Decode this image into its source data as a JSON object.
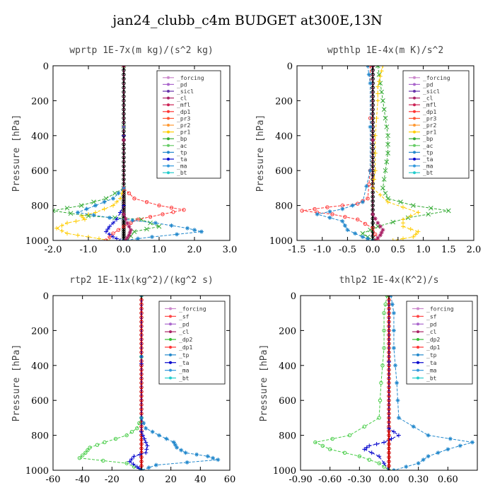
{
  "page": {
    "title": "jan24_clubb_c4m  BUDGET at300E,13N"
  },
  "chart_data": [
    {
      "type": "line",
      "title": "wprtp  1E-7x(m kg)/(s^2 kg)",
      "ylabel": "Pressure [hPa]",
      "xlim": [
        -2.0,
        3.0
      ],
      "ylim": [
        1000,
        0
      ],
      "xticks": [
        "-2.0",
        "-1.0",
        "0.0",
        "1.0",
        "2.0",
        "3.0"
      ],
      "xtick_values": [
        -2,
        -1,
        0,
        1,
        2,
        3
      ],
      "yticks": [
        "0",
        "200",
        "400",
        "600",
        "800",
        "1000"
      ],
      "ytick_values": [
        0,
        200,
        400,
        600,
        800,
        1000
      ],
      "legend": [
        "_forcing",
        "_pd",
        "_sicl",
        "_cl",
        "_mfl",
        "_dp1",
        "_pr3",
        "_pr2",
        "_pr1",
        "_bp",
        "_ac",
        "_tp",
        "_ta",
        "_ma",
        "_bt"
      ],
      "series": [
        {
          "name": "_forcing",
          "color": "#000000",
          "marker": "o",
          "x": [
            0,
            0,
            0,
            0,
            0,
            0,
            0,
            0,
            0,
            0,
            0,
            0,
            0,
            0
          ],
          "y": [
            0,
            100,
            200,
            300,
            400,
            500,
            600,
            700,
            750,
            800,
            850,
            900,
            950,
            1000
          ]
        },
        {
          "name": "_pr1",
          "color": "#ffcc00",
          "marker": "+",
          "x": [
            0,
            0,
            -0.1,
            -0.3,
            -0.8,
            -1.2,
            -1.1,
            -1.6,
            -1.9,
            -1.6,
            -1.0,
            -0.4
          ],
          "y": [
            0,
            700,
            760,
            800,
            840,
            860,
            880,
            900,
            930,
            960,
            980,
            1000
          ]
        },
        {
          "name": "_bp",
          "color": "#33aa33",
          "marker": "x",
          "x": [
            0,
            0,
            -0.5,
            -1.2,
            -2.0,
            -1.0,
            0.5,
            1.0,
            0.3,
            0.1
          ],
          "y": [
            0,
            700,
            760,
            800,
            830,
            860,
            880,
            920,
            950,
            1000
          ]
        },
        {
          "name": "_dp1",
          "color": "#ff3333",
          "marker": "o",
          "x": [
            0,
            0,
            0.3,
            1.0,
            1.7,
            1.1,
            0.4,
            0,
            -0.3,
            -0.5
          ],
          "y": [
            0,
            700,
            760,
            800,
            825,
            850,
            880,
            920,
            960,
            1000
          ]
        },
        {
          "name": "_tp",
          "color": "#2288cc",
          "marker": "*",
          "x": [
            0,
            0,
            -0.3,
            -0.8,
            -1.3,
            -0.4,
            0.9,
            1.8,
            2.2,
            0.8,
            0
          ],
          "y": [
            0,
            700,
            760,
            800,
            840,
            870,
            900,
            930,
            950,
            980,
            1000
          ]
        },
        {
          "name": "_ta",
          "color": "#0000cc",
          "marker": "+",
          "x": [
            0,
            0,
            -0.2,
            -0.4,
            -0.5,
            -0.3,
            -0.1
          ],
          "y": [
            0,
            800,
            880,
            920,
            950,
            980,
            1000
          ]
        },
        {
          "name": "_cl",
          "color": "#aa2266",
          "marker": "*",
          "x": [
            0,
            0,
            0.1,
            0.2,
            0.15,
            0.05
          ],
          "y": [
            0,
            850,
            900,
            940,
            970,
            1000
          ]
        }
      ]
    },
    {
      "type": "line",
      "title": "wpthlp  1E-4x(m K)/s^2",
      "ylabel": "Pressure [hPa]",
      "xlim": [
        -1.5,
        2.0
      ],
      "ylim": [
        1000,
        0
      ],
      "xticks": [
        "-1.5",
        "-1.0",
        "-0.5",
        "0.0",
        "0.5",
        "1.0",
        "1.5",
        "2.0"
      ],
      "xtick_values": [
        -1.5,
        -1,
        -0.5,
        0,
        0.5,
        1,
        1.5,
        2
      ],
      "yticks": [
        "0",
        "200",
        "400",
        "600",
        "800",
        "1000"
      ],
      "ytick_values": [
        0,
        200,
        400,
        600,
        800,
        1000
      ],
      "legend": [
        "_forcing",
        "_pd",
        "_sicl",
        "_cl",
        "_mfl",
        "_dp1",
        "_pr3",
        "_pr2",
        "_pr1",
        "_bp",
        "_ac",
        "_tp",
        "_ta",
        "_ma",
        "_bt"
      ],
      "series": [
        {
          "name": "_forcing",
          "color": "#000000",
          "marker": "o",
          "x": [
            0,
            0,
            0,
            0,
            0,
            0,
            0,
            0,
            0,
            0,
            0
          ],
          "y": [
            0,
            100,
            200,
            300,
            400,
            500,
            600,
            700,
            800,
            900,
            1000
          ]
        },
        {
          "name": "_bp",
          "color": "#33aa33",
          "marker": "x",
          "x": [
            0.1,
            0.15,
            0.2,
            0.25,
            0.3,
            0.3,
            0.25,
            0.2,
            0.3,
            0.8,
            1.5,
            0.7,
            0.1,
            -0.2,
            0
          ],
          "y": [
            0,
            100,
            200,
            300,
            400,
            500,
            600,
            700,
            760,
            800,
            830,
            870,
            920,
            960,
            1000
          ]
        },
        {
          "name": "_pr1",
          "color": "#ffcc00",
          "marker": "+",
          "x": [
            0.2,
            0.15,
            0.1,
            0.1,
            0.05,
            0.05,
            0,
            0.3,
            0.9,
            0.6,
            0.6,
            0.9,
            0.8,
            0.4
          ],
          "y": [
            0,
            60,
            120,
            200,
            400,
            600,
            700,
            780,
            840,
            880,
            920,
            950,
            980,
            1000
          ]
        },
        {
          "name": "_dp1",
          "color": "#ff3333",
          "marker": "o",
          "x": [
            -0.05,
            -0.05,
            -0.1,
            -0.3,
            -0.9,
            -1.4,
            -0.8,
            -0.3,
            0,
            0.1
          ],
          "y": [
            0,
            600,
            760,
            790,
            810,
            830,
            850,
            880,
            930,
            1000
          ]
        },
        {
          "name": "_tp",
          "color": "#2288cc",
          "marker": "*",
          "x": [
            -0.1,
            -0.05,
            -0.05,
            -0.2,
            -0.6,
            -1.1,
            -0.6,
            -0.5,
            -0.2,
            0
          ],
          "y": [
            0,
            100,
            600,
            780,
            820,
            850,
            890,
            940,
            980,
            1000
          ]
        },
        {
          "name": "_cl",
          "color": "#aa2266",
          "marker": "*",
          "x": [
            0,
            0,
            0.1,
            0.2,
            0.15,
            0.05
          ],
          "y": [
            0,
            850,
            900,
            940,
            970,
            1000
          ]
        }
      ]
    },
    {
      "type": "line",
      "title": "rtp2  1E-11x(kg^2)/(kg^2 s)",
      "ylabel": "Pressure [hPa]",
      "xlim": [
        -60,
        60
      ],
      "ylim": [
        1000,
        0
      ],
      "xticks": [
        "-60",
        "-40",
        "-20",
        "0",
        "20",
        "40",
        "60"
      ],
      "xtick_values": [
        -60,
        -40,
        -20,
        0,
        20,
        40,
        60
      ],
      "yticks": [
        "0",
        "200",
        "400",
        "600",
        "800",
        "1000"
      ],
      "ytick_values": [
        0,
        200,
        400,
        600,
        800,
        1000
      ],
      "legend": [
        "_forcing",
        "_sf",
        "_pd",
        "_cl",
        "_dp2",
        "_dp1",
        "_tp",
        "_ta",
        "_ma",
        "_bt"
      ],
      "series": [
        {
          "name": "_forcing",
          "color": "#cc0000",
          "marker": "o",
          "x": [
            0,
            0,
            0,
            0,
            0,
            0,
            0,
            0,
            0,
            0,
            0
          ],
          "y": [
            0,
            100,
            200,
            300,
            400,
            500,
            600,
            700,
            800,
            900,
            1000
          ]
        },
        {
          "name": "_dp1",
          "color": "#44cc44",
          "marker": "o",
          "x": [
            0,
            0,
            -3,
            -10,
            -25,
            -35,
            -38,
            -42,
            -10,
            0
          ],
          "y": [
            0,
            700,
            760,
            800,
            840,
            870,
            900,
            930,
            960,
            1000
          ]
        },
        {
          "name": "_tp",
          "color": "#2288cc",
          "marker": "*",
          "x": [
            0,
            0,
            3,
            12,
            22,
            24,
            30,
            45,
            52,
            10,
            0
          ],
          "y": [
            0,
            700,
            760,
            800,
            840,
            870,
            900,
            920,
            940,
            970,
            1000
          ]
        },
        {
          "name": "_ta",
          "color": "#0000cc",
          "marker": "+",
          "x": [
            0,
            0,
            2,
            4,
            3,
            -5,
            -8,
            -3,
            0
          ],
          "y": [
            0,
            780,
            820,
            860,
            900,
            920,
            950,
            980,
            1000
          ]
        }
      ]
    },
    {
      "type": "line",
      "title": "thlp2  1E-4x(K^2)/s",
      "ylabel": "Pressure [hPa]",
      "xlim": [
        -0.9,
        0.9
      ],
      "ylim": [
        1000,
        0
      ],
      "xticks": [
        "-0.90",
        "-0.60",
        "-0.30",
        "0.00",
        "0.30",
        "0.60"
      ],
      "xtick_values": [
        -0.9,
        -0.6,
        -0.3,
        0,
        0.3,
        0.6
      ],
      "yticks": [
        "0",
        "200",
        "400",
        "600",
        "800",
        "1000"
      ],
      "ytick_values": [
        0,
        200,
        400,
        600,
        800,
        1000
      ],
      "legend": [
        "_forcing",
        "_sf",
        "_pd",
        "_cl",
        "_dp2",
        "_dp1",
        "_tp",
        "_ta",
        "_ma",
        "_bt"
      ],
      "series": [
        {
          "name": "_forcing",
          "color": "#cc0000",
          "marker": "o",
          "x": [
            0,
            0,
            0,
            0,
            0,
            0,
            0,
            0,
            0,
            0,
            0
          ],
          "y": [
            0,
            100,
            200,
            300,
            400,
            500,
            600,
            700,
            800,
            900,
            1000
          ]
        },
        {
          "name": "_dp1",
          "color": "#44cc44",
          "marker": "o",
          "x": [
            -0.02,
            -0.05,
            -0.05,
            -0.08,
            -0.1,
            -0.4,
            -0.75,
            -0.6,
            -0.3,
            -0.1,
            0
          ],
          "y": [
            0,
            100,
            300,
            500,
            700,
            800,
            840,
            880,
            920,
            960,
            1000
          ]
        },
        {
          "name": "_tp",
          "color": "#2288cc",
          "marker": "*",
          "x": [
            0.02,
            0.05,
            0.05,
            0.08,
            0.1,
            0.4,
            0.85,
            0.6,
            0.4,
            0.3,
            0.05
          ],
          "y": [
            0,
            100,
            300,
            500,
            700,
            800,
            840,
            880,
            920,
            960,
            1000
          ]
        },
        {
          "name": "_ta",
          "color": "#0000cc",
          "marker": "+",
          "x": [
            0,
            0,
            0.1,
            -0.05,
            -0.2,
            -0.25,
            -0.1,
            0
          ],
          "y": [
            0,
            760,
            800,
            840,
            860,
            880,
            920,
            1000
          ]
        }
      ]
    }
  ]
}
